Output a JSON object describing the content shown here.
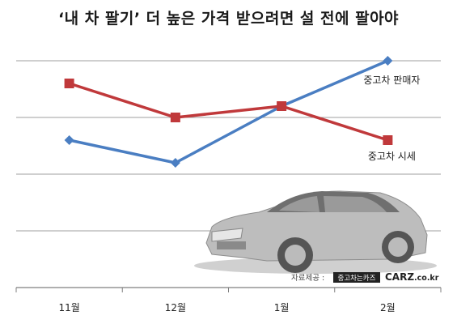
{
  "title": "‘내 차 팔기’ 더 높은 가격 받으려면 설 전에 팔아야",
  "source": {
    "label": "자료제공 :",
    "logo_text": "중고차는카즈",
    "brand_main": "CARZ",
    "brand_suffix": ".co.kr"
  },
  "colors": {
    "seller_series": "#4a7ec2",
    "price_series": "#c0393b",
    "grid": "#7f7f7f"
  },
  "chart_data": {
    "type": "line",
    "title": "‘내 차 팔기’ 더 높은 가격 받으려면 설 전에 팔아야",
    "categories": [
      "11월",
      "12월",
      "1월",
      "2월"
    ],
    "series": [
      {
        "name": "중고차 판매자",
        "values": [
          1.6,
          1.2,
          2.2,
          3.0
        ]
      },
      {
        "name": "중고차 시세",
        "values": [
          2.6,
          2.0,
          2.2,
          1.6
        ]
      }
    ],
    "ylim": [
      -1,
      3
    ],
    "grid": true,
    "y_ticks_shown": false,
    "xlabel": "",
    "ylabel": ""
  }
}
